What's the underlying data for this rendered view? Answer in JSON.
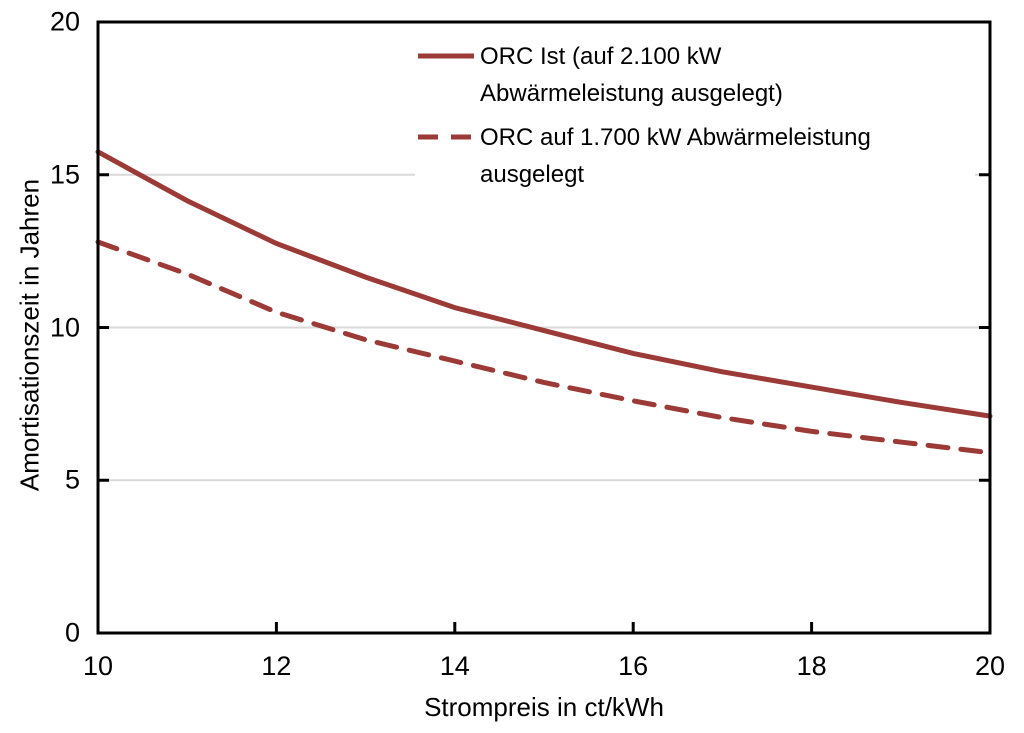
{
  "chart_data": {
    "type": "line",
    "title": "",
    "xlabel": "Strompreis in ct/kWh",
    "ylabel": "Amortisationszeit in Jahren",
    "xlim": [
      10,
      20
    ],
    "ylim": [
      0,
      20
    ],
    "x_tick_labels": [
      "10",
      "12",
      "14",
      "16",
      "18",
      "20"
    ],
    "x_tick_values": [
      10,
      12,
      14,
      16,
      18,
      20
    ],
    "y_tick_labels": [
      "0",
      "5",
      "10",
      "15",
      "20"
    ],
    "y_tick_values": [
      0,
      5,
      10,
      15,
      20
    ],
    "gridlines_y": [
      5,
      10,
      15
    ],
    "inner_ticks_bottom": [
      12,
      14,
      16,
      18
    ],
    "inner_ticks_left": [
      5,
      10,
      15
    ],
    "inner_ticks_right": [
      5,
      10,
      15
    ],
    "grid_on": true,
    "grid_color": "#d9d9d9",
    "axis_color": "#000000",
    "series_color": "#9b3a36",
    "legend_position": "top-right-inside",
    "x": [
      10,
      11,
      12,
      13,
      14,
      15,
      16,
      17,
      18,
      19,
      20
    ],
    "series": [
      {
        "name": "ORC Ist (auf 2.100 kW Abwärmeleistung ausgelegt)",
        "label_lines": [
          "ORC Ist (auf 2.100 kW",
          "Abwärmeleistung ausgelegt)"
        ],
        "style": "solid",
        "values": [
          15.75,
          14.15,
          12.75,
          11.65,
          10.65,
          9.9,
          9.15,
          8.55,
          8.05,
          7.55,
          7.1
        ]
      },
      {
        "name": "ORC auf 1.700 kW Abwärmeleistung ausgelegt",
        "label_lines": [
          "ORC auf 1.700 kW Abwärmeleistung",
          "ausgelegt"
        ],
        "style": "dashed",
        "values": [
          12.8,
          11.75,
          10.5,
          9.6,
          8.9,
          8.2,
          7.6,
          7.05,
          6.6,
          6.25,
          5.9
        ]
      }
    ]
  }
}
